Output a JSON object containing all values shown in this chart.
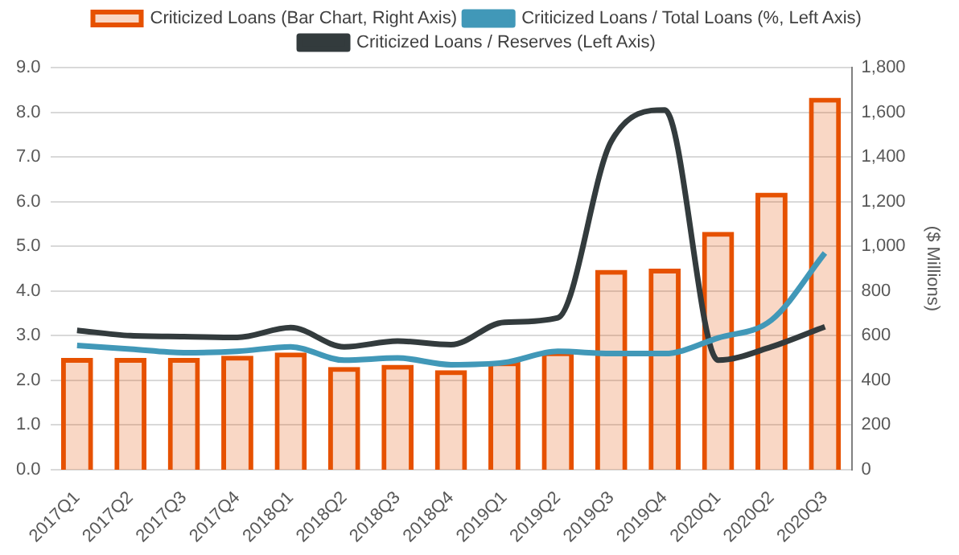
{
  "chart_data": {
    "type": "bar",
    "categories": [
      "2017Q1",
      "2017Q2",
      "2017Q3",
      "2017Q4",
      "2018Q1",
      "2018Q2",
      "2018Q3",
      "2018Q4",
      "2019Q1",
      "2019Q2",
      "2019Q3",
      "2019Q4",
      "2020Q1",
      "2020Q2",
      "2020Q3"
    ],
    "series": [
      {
        "name": "Criticized Loans (Bar Chart, Right Axis)",
        "axis": "y2",
        "color": "#e65100",
        "values": [
          500,
          500,
          500,
          510,
          525,
          460,
          470,
          445,
          485,
          530,
          895,
          900,
          1065,
          1240,
          1665
        ]
      },
      {
        "name": "Criticized Loans / Total Loans (%, Left Axis)",
        "type": "line",
        "color": "#4198b8",
        "values": [
          2.78,
          2.7,
          2.62,
          2.65,
          2.75,
          2.45,
          2.5,
          2.35,
          2.4,
          2.65,
          2.6,
          2.6,
          2.95,
          3.35,
          4.85
        ]
      },
      {
        "name": "Criticized Loans / Reserves (Left Axis)",
        "type": "line",
        "color": "#333b3d",
        "values": [
          3.12,
          3.0,
          2.98,
          2.96,
          3.18,
          2.75,
          2.88,
          2.8,
          3.3,
          3.4,
          7.35,
          8.05,
          2.45,
          2.75,
          3.2
        ]
      }
    ],
    "ylim": [
      0,
      9
    ],
    "yticks": [
      {
        "value": 0,
        "label": "0.0"
      },
      {
        "value": 1,
        "label": "1.0"
      },
      {
        "value": 2,
        "label": "2.0"
      },
      {
        "value": 3,
        "label": "3.0"
      },
      {
        "value": 4,
        "label": "4.0"
      },
      {
        "value": 5,
        "label": "5.0"
      },
      {
        "value": 6,
        "label": "6.0"
      },
      {
        "value": 7,
        "label": "7.0"
      },
      {
        "value": 8,
        "label": "8.0"
      },
      {
        "value": 9,
        "label": "9.0"
      }
    ],
    "y2lim": [
      0,
      1800
    ],
    "y2ticks": [
      0,
      200,
      400,
      600,
      800,
      {
        "value": 1000,
        "label": "1,000"
      },
      {
        "value": 1200,
        "label": "1,200"
      },
      {
        "value": 1400,
        "label": "1,400"
      },
      {
        "value": 1600,
        "label": "1,600"
      },
      {
        "value": 1800,
        "label": "1,800"
      }
    ],
    "y2label": "($ Millions)",
    "grid": "y",
    "legend": "top",
    "marker": "none"
  }
}
